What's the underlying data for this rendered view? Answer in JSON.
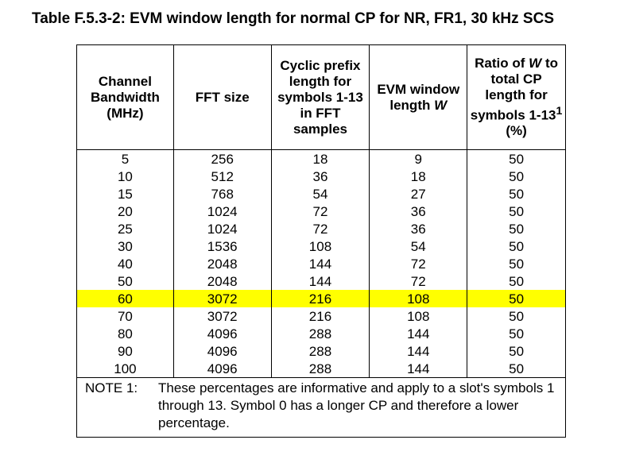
{
  "title": "Table F.5.3-2: EVM window length for normal CP for NR, FR1, 30 kHz SCS",
  "headers": {
    "channel_bw": "Channel Bandwidth (MHz)",
    "fft_size": "FFT size",
    "cp_length": "Cyclic prefix length for symbols 1-13 in FFT samples",
    "evm_window_prefix": "EVM window length",
    "evm_window_var": "W",
    "ratio_prefix": "Ratio of",
    "ratio_var": "W",
    "ratio_mid": "to total CP length for symbols 1-13",
    "ratio_sup": "1",
    "ratio_suffix": "(%)"
  },
  "rows": [
    [
      "5",
      "256",
      "18",
      "9",
      "50"
    ],
    [
      "10",
      "512",
      "36",
      "18",
      "50"
    ],
    [
      "15",
      "768",
      "54",
      "27",
      "50"
    ],
    [
      "20",
      "1024",
      "72",
      "36",
      "50"
    ],
    [
      "25",
      "1024",
      "72",
      "36",
      "50"
    ],
    [
      "30",
      "1536",
      "108",
      "54",
      "50"
    ],
    [
      "40",
      "2048",
      "144",
      "72",
      "50"
    ],
    [
      "50",
      "2048",
      "144",
      "72",
      "50"
    ],
    [
      "60",
      "3072",
      "216",
      "108",
      "50"
    ],
    [
      "70",
      "3072",
      "216",
      "108",
      "50"
    ],
    [
      "80",
      "4096",
      "288",
      "144",
      "50"
    ],
    [
      "90",
      "4096",
      "288",
      "144",
      "50"
    ],
    [
      "100",
      "4096",
      "288",
      "144",
      "50"
    ]
  ],
  "highlighted_row_index": 8,
  "highlight_color": "#ffff00",
  "note": {
    "label": "NOTE 1:",
    "text": "These percentages are informative and apply to a slot's symbols 1 through 13. Symbol 0 has a longer CP and therefore a lower percentage."
  }
}
